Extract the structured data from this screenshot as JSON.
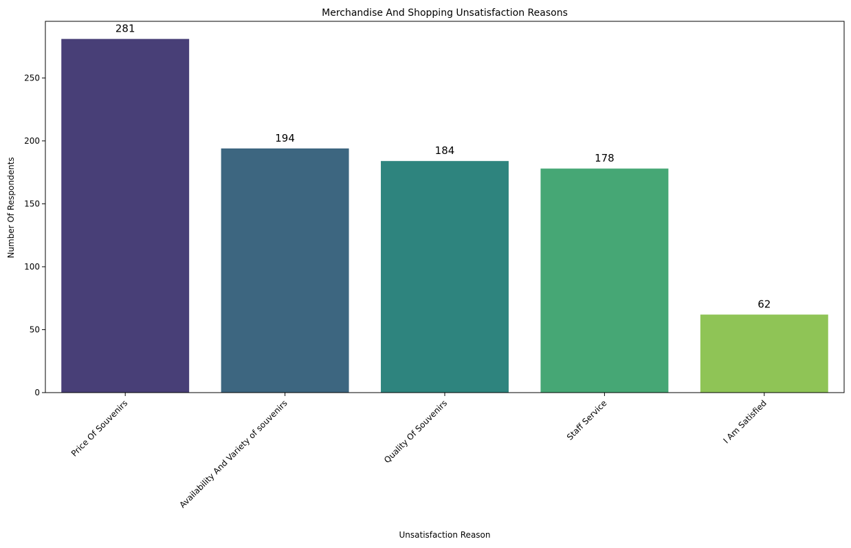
{
  "chart_data": {
    "type": "bar",
    "title": "Merchandise And Shopping Unsatisfaction Reasons",
    "xlabel": "Unsatisfaction Reason",
    "ylabel": "Number Of Respondents",
    "categories": [
      "Price Of Souvenirs",
      "Availability And Variety of souvenirs",
      "Quality Of Souvenirs",
      "Staff Service",
      "I Am Satisfied"
    ],
    "values": [
      281,
      194,
      184,
      178,
      62
    ],
    "data_labels": [
      "281",
      "194",
      "184",
      "178",
      "62"
    ],
    "ylim": [
      0,
      295
    ],
    "yticks": [
      0,
      50,
      100,
      150,
      200,
      250
    ],
    "ytick_labels": [
      "0",
      "50",
      "100",
      "150",
      "200",
      "250"
    ],
    "grid": false,
    "legend": "none",
    "colors": [
      "#483f77",
      "#3d6680",
      "#2e847e",
      "#46a775",
      "#8fc456"
    ]
  }
}
